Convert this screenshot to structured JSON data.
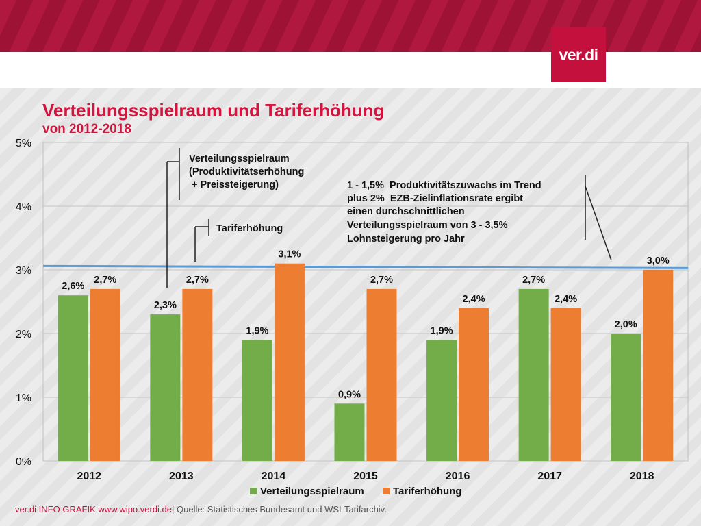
{
  "header": {
    "logo_text": "ver.di"
  },
  "chart_data": {
    "type": "bar",
    "title": "Verteilungsspielraum und Tariferhöhung",
    "subtitle": "von 2012-2018",
    "categories": [
      "2012",
      "2013",
      "2014",
      "2015",
      "2016",
      "2017",
      "2018"
    ],
    "series": [
      {
        "name": "Verteilungsspielraum",
        "color": "#72ad4a",
        "values": [
          2.6,
          2.3,
          1.9,
          0.9,
          1.9,
          2.7,
          2.0
        ],
        "labels": [
          "2,6%",
          "2,3%",
          "1,9%",
          "0,9%",
          "1,9%",
          "2,7%",
          "2,0%"
        ]
      },
      {
        "name": "Tariferhöhung",
        "color": "#ed7d31",
        "values": [
          2.7,
          2.7,
          3.1,
          2.7,
          2.4,
          2.4,
          3.0
        ],
        "labels": [
          "2,7%",
          "2,7%",
          "3,1%",
          "2,7%",
          "2,4%",
          "2,4%",
          "3,0%"
        ]
      }
    ],
    "ylim": [
      0,
      5
    ],
    "yticks": [
      0,
      1,
      2,
      3,
      4,
      5
    ],
    "ytick_labels": [
      "0%",
      "1%",
      "2%",
      "3%",
      "4%",
      "5%"
    ],
    "grid": true,
    "legend": "bottom",
    "reference_line": {
      "value": 3.05,
      "color": "#5b9bd5"
    },
    "annotations": {
      "spielraum": [
        "Verteilungsspielraum",
        "(Produktivitätserhöhung",
        " + Preissteigerung)"
      ],
      "tarif": "Tariferhöhung",
      "trend": [
        "1 - 1,5%  Produktivitätszuwachs im Trend",
        "plus 2%  EZB-Zielinflationsrate ergibt",
        "einen durchschnittlichen",
        "Verteilungsspielraum von 3 - 3,5%",
        "Lohnsteigerung pro Jahr"
      ]
    }
  },
  "footer": {
    "brand": "ver.di INFO GRAFIK www.wipo.verdi.de",
    "source": "| Quelle: Statistisches Bundesamt und WSI-Tarifarchiv."
  }
}
